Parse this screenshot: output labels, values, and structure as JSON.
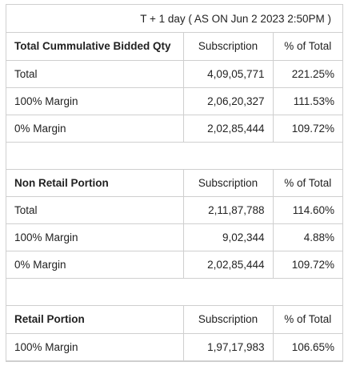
{
  "header": {
    "title": "T + 1 day ( AS ON Jun 2 2023 2:50PM )"
  },
  "sections": [
    {
      "heading": "Total Cummulative Bidded Qty",
      "col_subscription": "Subscription",
      "col_percent": "% of Total",
      "rows": [
        {
          "label": "Total",
          "subscription": "4,09,05,771",
          "percent": "221.25%"
        },
        {
          "label": "100% Margin",
          "subscription": "2,06,20,327",
          "percent": "111.53%"
        },
        {
          "label": "0% Margin",
          "subscription": "2,02,85,444",
          "percent": "109.72%"
        }
      ]
    },
    {
      "heading": "Non Retail Portion",
      "col_subscription": "Subscription",
      "col_percent": "% of Total",
      "rows": [
        {
          "label": "Total",
          "subscription": "2,11,87,788",
          "percent": "114.60%"
        },
        {
          "label": "100% Margin",
          "subscription": "9,02,344",
          "percent": "4.88%"
        },
        {
          "label": "0% Margin",
          "subscription": "2,02,85,444",
          "percent": "109.72%"
        }
      ]
    },
    {
      "heading": "Retail Portion",
      "col_subscription": "Subscription",
      "col_percent": "% of Total",
      "rows": [
        {
          "label": "100% Margin",
          "subscription": "1,97,17,983",
          "percent": "106.65%"
        }
      ]
    }
  ]
}
